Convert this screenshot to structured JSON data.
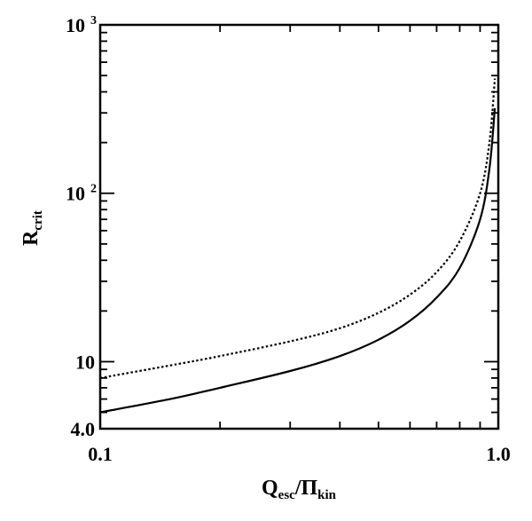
{
  "chart_data": {
    "type": "line",
    "title": "",
    "xlabel": "Q_esc/Π_kin",
    "xlabel_parts": {
      "main1": "Q",
      "sub1": "esc",
      "sep": "/Π",
      "sub2": "kin"
    },
    "ylabel": "R_crit",
    "ylabel_parts": {
      "main": "R",
      "sub": "crit"
    },
    "x_scale": "log",
    "y_scale": "log",
    "xlim": [
      0.1,
      1.0
    ],
    "ylim": [
      4.0,
      1000
    ],
    "x_tick_labels": [
      {
        "value": 0.1,
        "label": "0.1"
      },
      {
        "value": 1.0,
        "label": "1.0"
      }
    ],
    "y_tick_labels": [
      {
        "value": 4.0,
        "label": "4.0"
      },
      {
        "value": 10,
        "label": "10"
      },
      {
        "value": 100,
        "label": "10",
        "exp": "2"
      },
      {
        "value": 1000,
        "label": "10",
        "exp": "3"
      }
    ],
    "grid": false,
    "legend": "none",
    "series": [
      {
        "style": "solid",
        "color": "#000000",
        "x": [
          0.1,
          0.15,
          0.2,
          0.3,
          0.4,
          0.5,
          0.6,
          0.7,
          0.8,
          0.9,
          0.95,
          0.98
        ],
        "y": [
          5.0,
          6.0,
          7.0,
          8.8,
          10.8,
          13.5,
          17.5,
          24,
          36,
          70,
          140,
          320
        ]
      },
      {
        "style": "dotted",
        "color": "#000000",
        "x": [
          0.1,
          0.15,
          0.2,
          0.3,
          0.4,
          0.5,
          0.6,
          0.7,
          0.8,
          0.9,
          0.95,
          0.98
        ],
        "y": [
          8.0,
          9.5,
          10.8,
          13.2,
          15.8,
          19.5,
          25,
          34,
          52,
          100,
          200,
          480
        ]
      }
    ]
  }
}
